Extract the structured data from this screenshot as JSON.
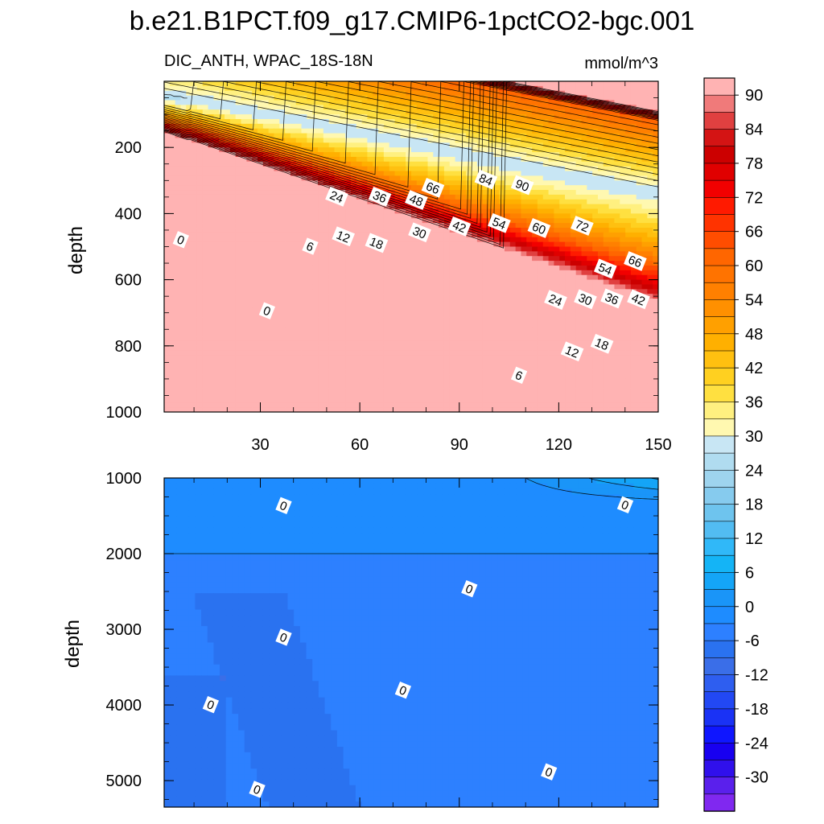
{
  "chart_data": {
    "type": "contour",
    "suptitle": "b.e21.B1PCT.f09_g17.CMIP6-1pctCO2-bgc.001",
    "subtitle_left": "DIC_ANTH, WPAC_18S-18N",
    "subtitle_right": "mmol/m^3",
    "variable": "DIC_ANTH",
    "units": "mmol/m^3",
    "region": "WPAC_18S-18N",
    "xlabel": "",
    "ylabel": "depth",
    "x_range": [
      1,
      150
    ],
    "x_ticks": [
      30,
      60,
      90,
      120,
      150
    ],
    "colorbar": {
      "levels": [
        -33,
        -30,
        -27,
        -24,
        -21,
        -18,
        -15,
        -12,
        -9,
        -6,
        -3,
        0,
        3,
        6,
        9,
        12,
        15,
        18,
        21,
        24,
        27,
        30,
        33,
        36,
        39,
        42,
        45,
        48,
        51,
        54,
        57,
        60,
        63,
        66,
        69,
        72,
        75,
        78,
        81,
        84,
        87,
        90,
        93
      ],
      "tick_labels": [
        "90",
        "84",
        "78",
        "72",
        "66",
        "60",
        "54",
        "48",
        "42",
        "36",
        "30",
        "24",
        "18",
        "12",
        "6",
        "0",
        "-6",
        "-12",
        "-18",
        "-24",
        "-30"
      ],
      "colors": [
        "#ffb3b3",
        "#f07a7a",
        "#e04040",
        "#d41414",
        "#cc0000",
        "#e00000",
        "#f20000",
        "#ff1a00",
        "#ff3300",
        "#ff4d00",
        "#ff6600",
        "#ff7300",
        "#ff8000",
        "#ff9000",
        "#ffa000",
        "#ffb000",
        "#ffc010",
        "#ffd020",
        "#ffe040",
        "#fff080",
        "#fff8b0",
        "#c8e6f4",
        "#b0dcf0",
        "#9ed4ee",
        "#86cbee",
        "#6ec4ee",
        "#52bcf2",
        "#30b8f8",
        "#14b4f6",
        "#14a5f7",
        "#1a95f8",
        "#1e8cff",
        "#2d80ff",
        "#2a72f0",
        "#3a6ee8",
        "#2e5ef0",
        "#2248f4",
        "#1a32f5",
        "#0f16ff",
        "#1800f0",
        "#3010ec",
        "#5a20ec",
        "#8028f0"
      ]
    },
    "panels": [
      {
        "name": "upper",
        "depth_range": [
          0,
          1000
        ],
        "y_ticks": [
          200,
          400,
          600,
          800,
          1000
        ],
        "contour_labels": [
          {
            "text": "84",
            "x": 98,
            "depth": 298
          },
          {
            "text": "90",
            "x": 109,
            "depth": 315
          },
          {
            "text": "66",
            "x": 82,
            "depth": 323
          },
          {
            "text": "48",
            "x": 77,
            "depth": 360
          },
          {
            "text": "36",
            "x": 66,
            "depth": 350
          },
          {
            "text": "24",
            "x": 53,
            "depth": 350
          },
          {
            "text": "54",
            "x": 102,
            "depth": 430
          },
          {
            "text": "60",
            "x": 114,
            "depth": 445
          },
          {
            "text": "72",
            "x": 127,
            "depth": 438
          },
          {
            "text": "42",
            "x": 90,
            "depth": 440
          },
          {
            "text": "30",
            "x": 78,
            "depth": 458
          },
          {
            "text": "18",
            "x": 65,
            "depth": 490
          },
          {
            "text": "12",
            "x": 55,
            "depth": 470
          },
          {
            "text": "6",
            "x": 45,
            "depth": 500
          },
          {
            "text": "0",
            "x": 6,
            "depth": 480
          },
          {
            "text": "0",
            "x": 32,
            "depth": 695
          },
          {
            "text": "54",
            "x": 134,
            "depth": 568
          },
          {
            "text": "66",
            "x": 143,
            "depth": 545
          },
          {
            "text": "24",
            "x": 119,
            "depth": 662
          },
          {
            "text": "30",
            "x": 128,
            "depth": 660
          },
          {
            "text": "36",
            "x": 136,
            "depth": 658
          },
          {
            "text": "42",
            "x": 144,
            "depth": 660
          },
          {
            "text": "18",
            "x": 133,
            "depth": 795
          },
          {
            "text": "12",
            "x": 124,
            "depth": 818
          },
          {
            "text": "6",
            "x": 108,
            "depth": 890
          }
        ]
      },
      {
        "name": "lower",
        "depth_range": [
          1000,
          5350
        ],
        "y_ticks": [
          1000,
          2000,
          3000,
          4000,
          5000
        ],
        "contour_labels": [
          {
            "text": "0",
            "x": 37,
            "depth": 1370
          },
          {
            "text": "0",
            "x": 140,
            "depth": 1360
          },
          {
            "text": "0",
            "x": 93,
            "depth": 2470
          },
          {
            "text": "0",
            "x": 37,
            "depth": 3110
          },
          {
            "text": "0",
            "x": 73,
            "depth": 3810
          },
          {
            "text": "0",
            "x": 15,
            "depth": 4000
          },
          {
            "text": "0",
            "x": 117,
            "depth": 4890
          },
          {
            "text": "0",
            "x": 29,
            "depth": 5120
          }
        ]
      }
    ]
  }
}
